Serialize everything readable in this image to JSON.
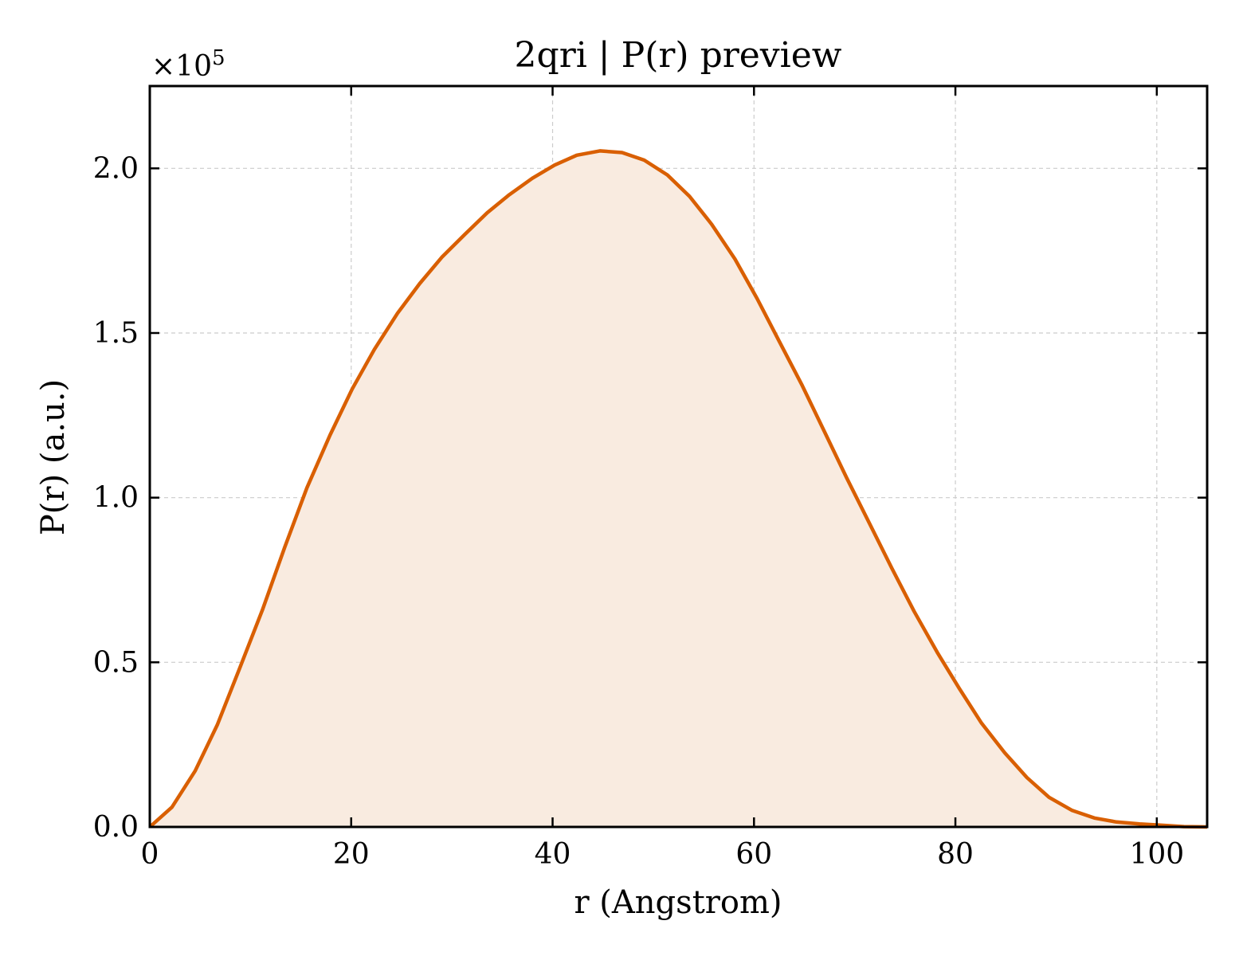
{
  "chart_data": {
    "type": "area",
    "title": "2qri | P(r) preview",
    "xlabel": "r (Angstrom)",
    "ylabel": "P(r) (a.u.)",
    "y_multiplier_label": "×10",
    "y_multiplier_exponent": "5",
    "xlim": [
      0,
      105
    ],
    "ylim": [
      0,
      2.25
    ],
    "x_ticks": [
      0,
      20,
      40,
      60,
      80,
      100
    ],
    "x_tick_labels": [
      "0",
      "20",
      "40",
      "60",
      "80",
      "100"
    ],
    "y_ticks": [
      0,
      0.5,
      1.0,
      1.5,
      2.0
    ],
    "y_tick_labels": [
      "0.0",
      "0.5",
      "1.0",
      "1.5",
      "2.0"
    ],
    "grid": true,
    "line_color": "#d95f02",
    "fill_color": "#f9ebe0",
    "series": [
      {
        "x": [
          0,
          2.2,
          4.5,
          6.7,
          8.9,
          11.2,
          13.4,
          15.6,
          17.9,
          20.1,
          22.3,
          24.6,
          26.8,
          29.0,
          31.3,
          33.5,
          35.7,
          38.0,
          40.2,
          42.4,
          44.7,
          46.9,
          49.1,
          51.4,
          53.6,
          55.8,
          58.1,
          60.3,
          62.5,
          64.8,
          67.0,
          69.2,
          71.5,
          73.7,
          75.9,
          78.2,
          80.4,
          82.6,
          84.9,
          87.1,
          89.3,
          91.6,
          93.8,
          96.0,
          98.3,
          100.5,
          102.7,
          105.0
        ],
        "y": [
          0.0,
          0.06,
          0.17,
          0.31,
          0.48,
          0.66,
          0.85,
          1.03,
          1.19,
          1.33,
          1.45,
          1.56,
          1.65,
          1.73,
          1.8,
          1.865,
          1.92,
          1.97,
          2.01,
          2.04,
          2.053,
          2.048,
          2.025,
          1.98,
          1.915,
          1.83,
          1.725,
          1.605,
          1.475,
          1.34,
          1.2,
          1.06,
          0.92,
          0.785,
          0.655,
          0.53,
          0.42,
          0.315,
          0.225,
          0.15,
          0.09,
          0.05,
          0.027,
          0.015,
          0.009,
          0.005,
          0.001,
          0.0
        ]
      }
    ]
  }
}
